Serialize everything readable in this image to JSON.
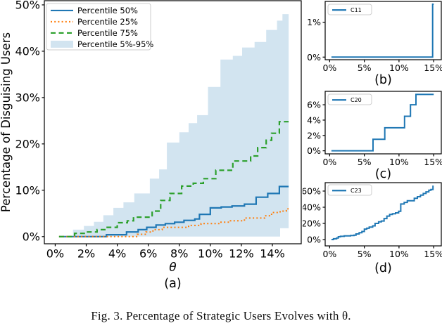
{
  "figure": {
    "caption": "Fig. 3.  Percentage of Strategic Users Evolves with θ."
  },
  "colors": {
    "blue": "#1f77b4",
    "orange": "#ff7f0e",
    "green": "#2ca02c",
    "band": "rgba(31,119,180,0.2)",
    "band_solid": "#d2e4f0",
    "axis": "#000000"
  },
  "chart_data": [
    {
      "id": "a",
      "type": "line",
      "sublabel": "(a)",
      "xlabel": "θ",
      "ylabel": "Percentage of Disguising Users",
      "xlim": [
        -0.7,
        15.86
      ],
      "ylim": [
        -1.55,
        50.9
      ],
      "x_end": 15.05,
      "xticks": [
        [
          0,
          "0%"
        ],
        [
          2,
          "2%"
        ],
        [
          4,
          "4%"
        ],
        [
          6,
          "6%"
        ],
        [
          8,
          "8%"
        ],
        [
          10,
          "10%"
        ],
        [
          12,
          "12%"
        ],
        [
          14,
          "14%"
        ]
      ],
      "yticks": [
        [
          0,
          "0%"
        ],
        [
          10,
          "10%"
        ],
        [
          20,
          "20%"
        ],
        [
          30,
          "30%"
        ],
        [
          40,
          "40%"
        ],
        [
          50,
          "50%"
        ]
      ],
      "legend": [
        {
          "label": "Percentile 50%",
          "color": "blue",
          "style": "solid"
        },
        {
          "label": "Percentile 25%",
          "color": "orange",
          "style": "dotted"
        },
        {
          "label": "Percentile 75%",
          "color": "green",
          "style": "dashed"
        },
        {
          "label": "Percentile 5%-95%",
          "color": "band_solid",
          "style": "patch"
        }
      ],
      "band": {
        "name": "Percentile 5%-95%",
        "upper": [
          [
            0.95,
            0
          ],
          [
            1.15,
            1.5
          ],
          [
            1.85,
            2.3
          ],
          [
            2.5,
            3.2
          ],
          [
            3.1,
            4.6
          ],
          [
            3.75,
            6.2
          ],
          [
            4.4,
            7.4
          ],
          [
            5.1,
            9.3
          ],
          [
            6.1,
            12.5
          ],
          [
            6.7,
            14.5
          ],
          [
            7.2,
            20.3
          ],
          [
            8.0,
            22.5
          ],
          [
            8.6,
            24.5
          ],
          [
            9.15,
            26.2
          ],
          [
            9.85,
            32.3
          ],
          [
            10.65,
            38.2
          ],
          [
            11.45,
            39.0
          ],
          [
            12.05,
            40.8
          ],
          [
            12.85,
            42.0
          ],
          [
            13.6,
            44.6
          ],
          [
            14.3,
            46.6
          ],
          [
            14.65,
            48.0
          ]
        ],
        "lower": [
          [
            0.95,
            0
          ],
          [
            14.5,
            1.8
          ]
        ]
      },
      "series": [
        {
          "name": "Percentile 50%",
          "color": "blue",
          "style": "solid",
          "width": 2.2,
          "points": [
            [
              0.25,
              0
            ],
            [
              3.3,
              0.4
            ],
            [
              4.6,
              1.0
            ],
            [
              5.35,
              1.5
            ],
            [
              5.9,
              2.0
            ],
            [
              6.5,
              2.5
            ],
            [
              7.1,
              2.8
            ],
            [
              7.7,
              3.1
            ],
            [
              8.3,
              3.5
            ],
            [
              9.0,
              3.8
            ],
            [
              9.3,
              4.8
            ],
            [
              10.0,
              6.2
            ],
            [
              10.7,
              6.4
            ],
            [
              11.4,
              6.6
            ],
            [
              12.2,
              7.0
            ],
            [
              12.95,
              8.5
            ],
            [
              13.7,
              9.3
            ],
            [
              14.45,
              10.8
            ]
          ]
        },
        {
          "name": "Percentile 25%",
          "color": "orange",
          "style": "dotted",
          "width": 2.0,
          "points": [
            [
              0.25,
              0
            ],
            [
              5.3,
              0.5
            ],
            [
              5.85,
              1.0
            ],
            [
              6.3,
              1.5
            ],
            [
              6.9,
              2.0
            ],
            [
              8.6,
              2.4
            ],
            [
              9.4,
              2.8
            ],
            [
              10.6,
              3.1
            ],
            [
              11.3,
              3.4
            ],
            [
              12.2,
              4.0
            ],
            [
              13.5,
              4.5
            ],
            [
              13.95,
              5.2
            ],
            [
              14.5,
              5.5
            ],
            [
              14.9,
              6.0
            ]
          ]
        },
        {
          "name": "Percentile 75%",
          "color": "green",
          "style": "dashed",
          "width": 2.2,
          "points": [
            [
              0.25,
              0
            ],
            [
              1.25,
              0.7
            ],
            [
              2.0,
              1.0
            ],
            [
              2.7,
              1.5
            ],
            [
              3.25,
              2.0
            ],
            [
              4.0,
              3.0
            ],
            [
              4.65,
              3.4
            ],
            [
              5.05,
              4.2
            ],
            [
              6.25,
              5.5
            ],
            [
              6.8,
              7.8
            ],
            [
              7.4,
              9.3
            ],
            [
              8.15,
              10.9
            ],
            [
              8.9,
              11.5
            ],
            [
              9.55,
              12.5
            ],
            [
              10.35,
              14.3
            ],
            [
              11.45,
              16.3
            ],
            [
              12.6,
              17.4
            ],
            [
              13.05,
              19.2
            ],
            [
              13.6,
              20.8
            ],
            [
              13.95,
              22.3
            ],
            [
              14.45,
              24.8
            ]
          ]
        }
      ]
    },
    {
      "id": "b",
      "type": "line",
      "sublabel": "(b)",
      "xlabel": "",
      "ylabel": "",
      "xlim": [
        -0.65,
        16.1
      ],
      "ylim": [
        -0.075,
        1.6
      ],
      "x_end": 15.0,
      "xticks": [
        [
          0,
          "0%"
        ],
        [
          5,
          "5%"
        ],
        [
          10,
          "10%"
        ],
        [
          15,
          "15%"
        ]
      ],
      "yticks": [
        [
          0,
          "0%"
        ],
        [
          1,
          "1%"
        ]
      ],
      "legend": [
        {
          "label": "C11",
          "color": "blue",
          "style": "solid"
        }
      ],
      "series": [
        {
          "name": "C11",
          "color": "blue",
          "style": "solid",
          "width": 2.0,
          "points": [
            [
              0.25,
              0
            ],
            [
              14.85,
              1.52
            ]
          ]
        }
      ]
    },
    {
      "id": "c",
      "type": "line",
      "sublabel": "(c)",
      "xlabel": "",
      "ylabel": "",
      "xlim": [
        -0.65,
        16.1
      ],
      "ylim": [
        -0.4,
        7.75
      ],
      "x_end": 15.0,
      "xticks": [
        [
          0,
          "0%"
        ],
        [
          5,
          "5%"
        ],
        [
          10,
          "10%"
        ],
        [
          15,
          "15%"
        ]
      ],
      "yticks": [
        [
          0,
          "0%"
        ],
        [
          2,
          "2%"
        ],
        [
          4,
          "4%"
        ],
        [
          6,
          "6%"
        ]
      ],
      "legend": [
        {
          "label": "C20",
          "color": "blue",
          "style": "solid"
        }
      ],
      "series": [
        {
          "name": "C20",
          "color": "blue",
          "style": "solid",
          "width": 2.0,
          "points": [
            [
              0.25,
              0
            ],
            [
              6.25,
              1.5
            ],
            [
              7.95,
              3.0
            ],
            [
              10.8,
              4.5
            ],
            [
              11.65,
              6.0
            ],
            [
              12.45,
              7.35
            ]
          ]
        }
      ]
    },
    {
      "id": "d",
      "type": "line",
      "sublabel": "(d)",
      "xlabel": "",
      "ylabel": "",
      "xlim": [
        -0.65,
        16.1
      ],
      "ylim": [
        -7.8,
        70.4
      ],
      "x_end": 15.0,
      "xticks": [
        [
          0,
          "0%"
        ],
        [
          5,
          "5%"
        ],
        [
          10,
          "10%"
        ],
        [
          15,
          "15%"
        ]
      ],
      "yticks": [
        [
          0,
          "0%"
        ],
        [
          20,
          "20%"
        ],
        [
          40,
          "40%"
        ],
        [
          60,
          "60%"
        ]
      ],
      "legend": [
        {
          "label": "C23",
          "color": "blue",
          "style": "solid"
        }
      ],
      "series": [
        {
          "name": "C23",
          "color": "blue",
          "style": "solid",
          "width": 2.0,
          "points": [
            [
              0.25,
              0
            ],
            [
              0.55,
              1
            ],
            [
              1.0,
              2
            ],
            [
              1.25,
              3.5
            ],
            [
              1.55,
              4
            ],
            [
              2.1,
              4.5
            ],
            [
              3.0,
              5
            ],
            [
              3.5,
              5.5
            ],
            [
              3.8,
              7
            ],
            [
              4.25,
              8.5
            ],
            [
              4.65,
              10
            ],
            [
              5.0,
              13
            ],
            [
              5.35,
              14
            ],
            [
              5.7,
              15.5
            ],
            [
              6.2,
              17
            ],
            [
              6.55,
              20
            ],
            [
              7.05,
              22
            ],
            [
              7.45,
              23
            ],
            [
              7.85,
              26
            ],
            [
              8.25,
              29
            ],
            [
              8.65,
              31
            ],
            [
              9.05,
              32
            ],
            [
              9.5,
              33
            ],
            [
              9.95,
              35
            ],
            [
              10.25,
              44
            ],
            [
              10.75,
              46
            ],
            [
              11.2,
              48
            ],
            [
              12.2,
              51
            ],
            [
              12.65,
              53
            ],
            [
              13.1,
              55
            ],
            [
              13.5,
              57
            ],
            [
              13.9,
              59
            ],
            [
              14.3,
              61
            ],
            [
              14.6,
              62
            ],
            [
              14.9,
              66
            ]
          ]
        }
      ]
    }
  ]
}
